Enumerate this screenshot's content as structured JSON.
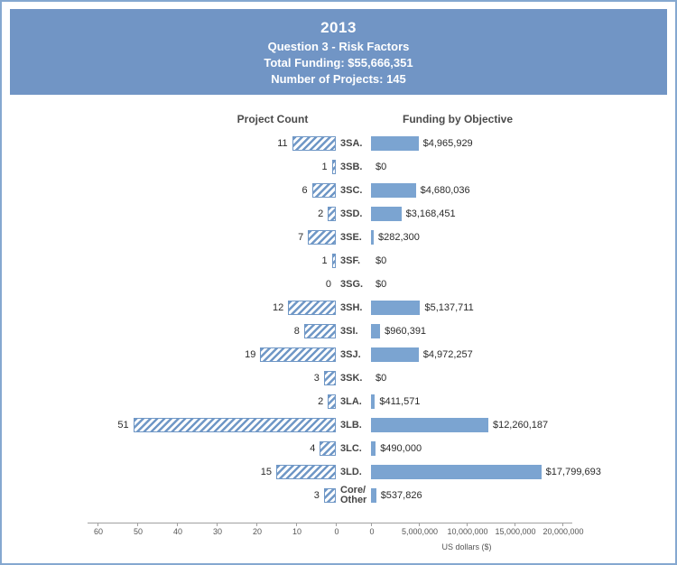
{
  "header": {
    "year": "2013",
    "question": "Question 3 - Risk Factors",
    "total_funding": "Total Funding: $55,666,351",
    "number_of_projects": "Number of Projects: 145"
  },
  "chart_data": {
    "type": "bar",
    "subtype": "diverging-horizontal",
    "left_title": "Project Count",
    "right_title": "Funding by Objective",
    "categories": [
      "3SA.",
      "3SB.",
      "3SC.",
      "3SD.",
      "3SE.",
      "3SF.",
      "3SG.",
      "3SH.",
      "3SI.",
      "3SJ.",
      "3SK.",
      "3LA.",
      "3LB.",
      "3LC.",
      "3LD.",
      "Core/Other"
    ],
    "display_categories": [
      "3SA.",
      "3SB.",
      "3SC.",
      "3SD.",
      "3SE.",
      "3SF.",
      "3SG.",
      "3SH.",
      "3SI.",
      "3SJ.",
      "3SK.",
      "3LA.",
      "3LB.",
      "3LC.",
      "3LD.",
      "Core/\nOther"
    ],
    "series": [
      {
        "name": "Project Count",
        "values": [
          11,
          1,
          6,
          2,
          7,
          1,
          0,
          12,
          8,
          19,
          3,
          2,
          51,
          4,
          15,
          3
        ]
      },
      {
        "name": "Funding by Objective",
        "values": [
          4965929,
          0,
          4680036,
          3168451,
          282300,
          0,
          0,
          5137711,
          960391,
          4972257,
          0,
          411571,
          12260187,
          490000,
          17799693,
          537826
        ],
        "labels": [
          "$4,965,929",
          "$0",
          "$4,680,036",
          "$3,168,451",
          "$282,300",
          "$0",
          "$0",
          "$5,137,711",
          "$960,391",
          "$4,972,257",
          "$0",
          "$411,571",
          "$12,260,187",
          "$490,000",
          "$17,799,693",
          "$537,826"
        ]
      }
    ],
    "count_axis": {
      "ticks": [
        60,
        50,
        40,
        30,
        20,
        10,
        0
      ],
      "max": 60
    },
    "funding_axis": {
      "ticks": [
        0,
        5000000,
        10000000,
        15000000,
        20000000
      ],
      "tick_labels": [
        "0",
        "5,000,000",
        "10,000,000",
        "15,000,000",
        "20,000,000"
      ],
      "max": 20000000,
      "title": "US dollars ($)"
    },
    "grid": false,
    "legend": false
  },
  "colors": {
    "header_bg": "#7195c5",
    "bar_solid": "#7ba4d1",
    "bar_hatch": "#6f97c6",
    "frame_border": "#85a8d0"
  }
}
